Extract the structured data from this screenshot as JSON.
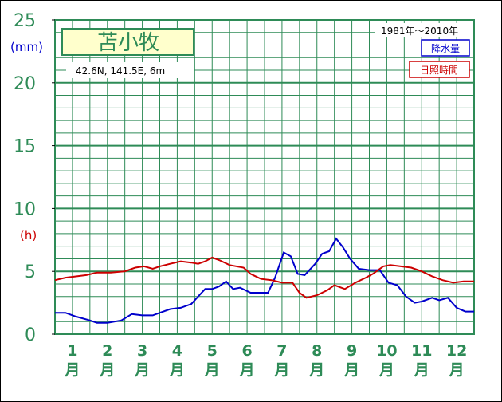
{
  "chart_data": {
    "type": "line",
    "station": "苫小牧",
    "location": "42.6N, 141.5E, 6m",
    "period": "1981年〜2010年",
    "y_ticks": [
      "0",
      "5",
      "10",
      "15",
      "20",
      "25"
    ],
    "ylim": [
      0,
      25
    ],
    "y_unit_precip": "(mm)",
    "y_unit_sun": "(h)",
    "months": [
      {
        "num": "1",
        "suffix": "月"
      },
      {
        "num": "2",
        "suffix": "月"
      },
      {
        "num": "3",
        "suffix": "月"
      },
      {
        "num": "4",
        "suffix": "月"
      },
      {
        "num": "5",
        "suffix": "月"
      },
      {
        "num": "6",
        "suffix": "月"
      },
      {
        "num": "7",
        "suffix": "月"
      },
      {
        "num": "8",
        "suffix": "月"
      },
      {
        "num": "9",
        "suffix": "月"
      },
      {
        "num": "10",
        "suffix": "月"
      },
      {
        "num": "11",
        "suffix": "月"
      },
      {
        "num": "12",
        "suffix": "月"
      }
    ],
    "series": [
      {
        "name": "降水量",
        "color": "#0000cc",
        "x": [
          0,
          0.3,
          0.6,
          1.0,
          1.2,
          1.5,
          1.9,
          2.2,
          2.5,
          2.8,
          3.0,
          3.3,
          3.6,
          3.9,
          4.1,
          4.3,
          4.5,
          4.7,
          4.9,
          5.1,
          5.3,
          5.6,
          5.9,
          6.1,
          6.3,
          6.55,
          6.75,
          6.95,
          7.15,
          7.45,
          7.65,
          7.85,
          8.05,
          8.25,
          8.45,
          8.7,
          9.0,
          9.3,
          9.55,
          9.8,
          10.05,
          10.3,
          10.5,
          10.8,
          11.0,
          11.25,
          11.5,
          11.75,
          12.0
        ],
        "values": [
          1.7,
          1.7,
          1.4,
          1.1,
          0.9,
          0.9,
          1.1,
          1.6,
          1.5,
          1.5,
          1.7,
          2.0,
          2.1,
          2.4,
          3.0,
          3.6,
          3.6,
          3.8,
          4.2,
          3.6,
          3.7,
          3.3,
          3.3,
          3.3,
          4.5,
          6.5,
          6.2,
          4.8,
          4.7,
          5.6,
          6.4,
          6.6,
          7.6,
          6.9,
          6.0,
          5.2,
          5.1,
          5.1,
          4.1,
          3.9,
          3.0,
          2.5,
          2.6,
          2.9,
          2.7,
          2.9,
          2.1,
          1.8,
          1.8
        ]
      },
      {
        "name": "日照時間",
        "color": "#cc0000",
        "x": [
          0,
          0.3,
          0.6,
          0.9,
          1.2,
          1.6,
          2.0,
          2.3,
          2.55,
          2.8,
          3.0,
          3.3,
          3.6,
          3.9,
          4.1,
          4.3,
          4.5,
          4.7,
          5.0,
          5.4,
          5.6,
          5.9,
          6.2,
          6.5,
          6.8,
          7.0,
          7.2,
          7.5,
          7.8,
          8.0,
          8.3,
          8.6,
          8.9,
          9.1,
          9.4,
          9.6,
          9.9,
          10.2,
          10.5,
          10.8,
          11.1,
          11.4,
          11.7,
          12.0
        ],
        "values": [
          4.3,
          4.5,
          4.6,
          4.7,
          4.9,
          4.9,
          5.0,
          5.3,
          5.4,
          5.2,
          5.4,
          5.6,
          5.8,
          5.7,
          5.6,
          5.8,
          6.1,
          5.9,
          5.5,
          5.3,
          4.8,
          4.4,
          4.3,
          4.1,
          4.1,
          3.3,
          2.9,
          3.1,
          3.5,
          3.9,
          3.6,
          4.1,
          4.5,
          4.8,
          5.4,
          5.5,
          5.4,
          5.3,
          5.0,
          4.6,
          4.3,
          4.1,
          4.2,
          4.2
        ]
      }
    ]
  }
}
